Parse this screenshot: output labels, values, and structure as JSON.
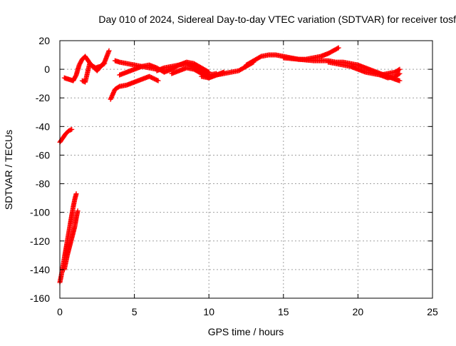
{
  "chart_data": {
    "type": "scatter",
    "title": "Day 010 of 2024, Sidereal Day-to-day VTEC variation (SDTVAR) for receiver tosf",
    "xlabel": "GPS time / hours",
    "ylabel": "SDTVAR / TECUs",
    "xlim": [
      0,
      25
    ],
    "ylim": [
      -160,
      20
    ],
    "xticks": [
      0,
      5,
      10,
      15,
      20,
      25
    ],
    "yticks": [
      -160,
      -140,
      -120,
      -100,
      -80,
      -60,
      -40,
      -20,
      0,
      20
    ],
    "grid": true,
    "marker": "+",
    "series": [
      {
        "name": "SDTVAR",
        "color": "#ff0000",
        "segments": [
          {
            "x": [
              0.0,
              0.2,
              0.4,
              0.6,
              0.8
            ],
            "y": [
              -51,
              -48,
              -45,
              -43,
              -42
            ]
          },
          {
            "x": [
              0.0,
              0.1,
              0.2,
              0.3,
              0.4,
              0.5,
              0.6,
              0.7,
              0.8,
              0.9,
              1.0,
              1.1
            ],
            "y": [
              -149,
              -144,
              -138,
              -132,
              -126,
              -120,
              -114,
              -108,
              -102,
              -96,
              -91,
              -87
            ]
          },
          {
            "x": [
              0.3,
              0.4,
              0.5,
              0.6,
              0.7,
              0.8,
              0.9,
              1.0,
              1.1,
              1.2
            ],
            "y": [
              -140,
              -135,
              -130,
              -126,
              -122,
              -118,
              -114,
              -110,
              -104,
              -99
            ]
          },
          {
            "x": [
              0.3,
              0.6,
              0.9,
              1.1,
              1.3,
              1.5,
              1.7,
              1.9,
              2.1,
              2.4,
              2.7,
              3.0
            ],
            "y": [
              -6,
              -7,
              -8,
              -4,
              3,
              7,
              9,
              6,
              3,
              1,
              2,
              4
            ]
          },
          {
            "x": [
              1.5,
              1.7,
              2.0,
              2.5,
              3.0,
              3.3
            ],
            "y": [
              -8,
              -9,
              4,
              -1,
              5,
              13
            ]
          },
          {
            "x": [
              3.4,
              3.7,
              4.0,
              4.5,
              5.0,
              5.5,
              6.0,
              6.6
            ],
            "y": [
              -21,
              -14,
              -12,
              -11,
              -9,
              -7,
              -5,
              -8
            ]
          },
          {
            "x": [
              3.7,
              4.0,
              4.5,
              5.0,
              5.5,
              6.0,
              6.5
            ],
            "y": [
              6,
              5,
              4,
              3,
              2,
              1,
              0
            ]
          },
          {
            "x": [
              4.0,
              4.5,
              5.0,
              5.5,
              6.0,
              6.5,
              7.0
            ],
            "y": [
              -4,
              -2,
              0,
              2,
              3,
              1,
              -2
            ]
          },
          {
            "x": [
              6.5,
              7.0,
              7.5,
              8.0,
              8.5,
              9.0,
              9.5,
              10.0,
              10.5
            ],
            "y": [
              -1,
              1,
              2,
              3,
              4,
              2,
              -1,
              -4,
              -3
            ]
          },
          {
            "x": [
              7.0,
              7.5,
              8.0,
              8.5,
              9.0,
              9.5,
              10.0
            ],
            "y": [
              -2,
              0,
              3,
              5,
              4,
              1,
              -2
            ]
          },
          {
            "x": [
              7.5,
              8.0,
              8.5,
              9.0,
              9.5,
              10.0,
              10.5,
              11.0
            ],
            "y": [
              -3,
              -1,
              1,
              0,
              -3,
              -6,
              -4,
              -2
            ]
          },
          {
            "x": [
              9.5,
              10.0,
              10.5,
              11.0,
              11.5,
              12.0,
              12.5,
              13.0
            ],
            "y": [
              -5,
              -6,
              -4,
              -3,
              -2,
              -1,
              2,
              5
            ]
          },
          {
            "x": [
              12.5,
              13.0,
              13.5,
              14.0,
              14.5,
              15.0,
              15.5,
              16.0,
              16.5,
              17.0,
              17.5,
              18.0,
              18.7
            ],
            "y": [
              3,
              6,
              9,
              10,
              10,
              9,
              8,
              7,
              7,
              8,
              9,
              11,
              15
            ]
          },
          {
            "x": [
              15.0,
              16.0,
              17.0,
              18.0,
              18.5,
              19.0,
              19.5,
              20.0,
              20.5,
              21.0,
              21.5,
              22.0,
              22.5,
              22.8
            ],
            "y": [
              8,
              7,
              6,
              6,
              5,
              5,
              4,
              3,
              1,
              -1,
              -3,
              -5,
              -7,
              -8
            ]
          },
          {
            "x": [
              18.0,
              18.5,
              19.0,
              19.5,
              20.0,
              20.5,
              21.0,
              21.5,
              22.0,
              22.5,
              22.8
            ],
            "y": [
              5,
              4,
              3,
              2,
              0,
              -2,
              -3,
              -4,
              -3,
              -2,
              0
            ]
          },
          {
            "x": [
              21.5,
              22.0,
              22.5,
              22.8
            ],
            "y": [
              -4,
              -6,
              -5,
              -3
            ]
          }
        ]
      }
    ]
  }
}
